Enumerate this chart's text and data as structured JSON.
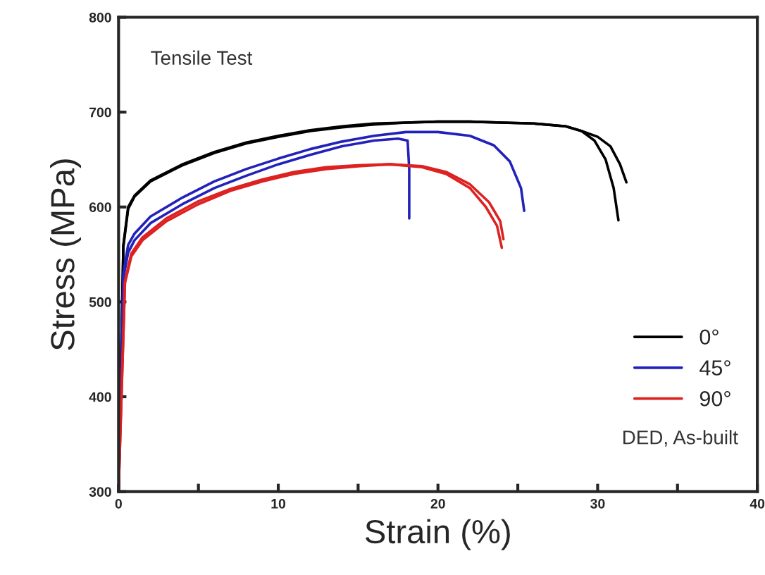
{
  "chart_data": {
    "type": "line",
    "xlabel": "Strain (%)",
    "ylabel": "Stress (MPa)",
    "annotations": [
      "Tensile Test",
      "DED, As-built"
    ],
    "xlim": [
      0,
      40
    ],
    "ylim": [
      300,
      800
    ],
    "xticks": [
      0,
      {
        "value": 5,
        "label": null
      },
      10,
      {
        "value": 15,
        "label": null
      },
      20,
      {
        "value": 25,
        "label": null
      },
      30,
      {
        "value": 35,
        "label": null
      },
      40
    ],
    "yticks": [
      300,
      400,
      500,
      600,
      700,
      800
    ],
    "grid": false,
    "legend": "bottom right",
    "marker": "none",
    "line_style": "solid",
    "series": [
      {
        "name": "0°",
        "color": "#000000",
        "x": [
          0,
          0.3,
          0.6,
          1,
          2,
          4,
          6,
          8,
          10,
          12,
          14,
          16,
          18,
          20,
          22,
          24,
          26,
          28,
          29,
          30,
          30.8,
          31.4,
          31.8
        ],
        "values": [
          300,
          560,
          600,
          612,
          628,
          645,
          658,
          668,
          675,
          681,
          685,
          688,
          689,
          690,
          690,
          689,
          688,
          685,
          680,
          674,
          664,
          645,
          626
        ]
      },
      {
        "color": "#000000",
        "x": [
          0,
          0.3,
          0.6,
          1,
          2,
          4,
          6,
          8,
          10,
          12,
          14,
          16,
          18,
          20,
          22,
          24,
          26,
          28,
          29,
          29.8,
          30.5,
          31,
          31.3
        ],
        "values": [
          300,
          558,
          598,
          611,
          627,
          644,
          657,
          667,
          674,
          680,
          684,
          687,
          689,
          690,
          690,
          689,
          688,
          685,
          680,
          670,
          650,
          620,
          586
        ]
      },
      {
        "name": "45°",
        "color": "#2222bb",
        "x": [
          0,
          0.3,
          0.6,
          1,
          2,
          4,
          6,
          8,
          10,
          12,
          14,
          16,
          18,
          20,
          22,
          23.5,
          24.5,
          25.2,
          25.4
        ],
        "values": [
          300,
          530,
          560,
          572,
          590,
          610,
          627,
          640,
          651,
          661,
          669,
          675,
          679,
          679,
          675,
          665,
          648,
          620,
          596
        ]
      },
      {
        "color": "#2222bb",
        "x": [
          0,
          0.3,
          0.6,
          1,
          2,
          4,
          6,
          8,
          10,
          12,
          14,
          16,
          17.5,
          18.1,
          18.2,
          18.2
        ],
        "values": [
          300,
          525,
          552,
          565,
          583,
          603,
          620,
          633,
          645,
          655,
          664,
          670,
          672,
          670,
          640,
          588
        ]
      },
      {
        "name": "90°",
        "color": "#dd2222",
        "x": [
          0,
          0.4,
          0.8,
          1.5,
          3,
          5,
          7,
          9,
          11,
          13,
          15,
          17,
          19,
          20.5,
          22,
          23,
          23.7,
          24
        ],
        "values": [
          300,
          520,
          548,
          565,
          585,
          603,
          617,
          627,
          635,
          640,
          643,
          645,
          642,
          635,
          620,
          600,
          580,
          557
        ]
      },
      {
        "color": "#dd2222",
        "x": [
          0,
          0.4,
          0.8,
          1.5,
          3,
          5,
          7,
          9,
          11,
          13,
          15,
          17,
          19,
          20.5,
          22,
          23.2,
          23.9,
          24.1
        ],
        "values": [
          300,
          522,
          551,
          568,
          588,
          606,
          619,
          629,
          637,
          642,
          644,
          645,
          643,
          637,
          624,
          605,
          585,
          566
        ]
      }
    ]
  }
}
